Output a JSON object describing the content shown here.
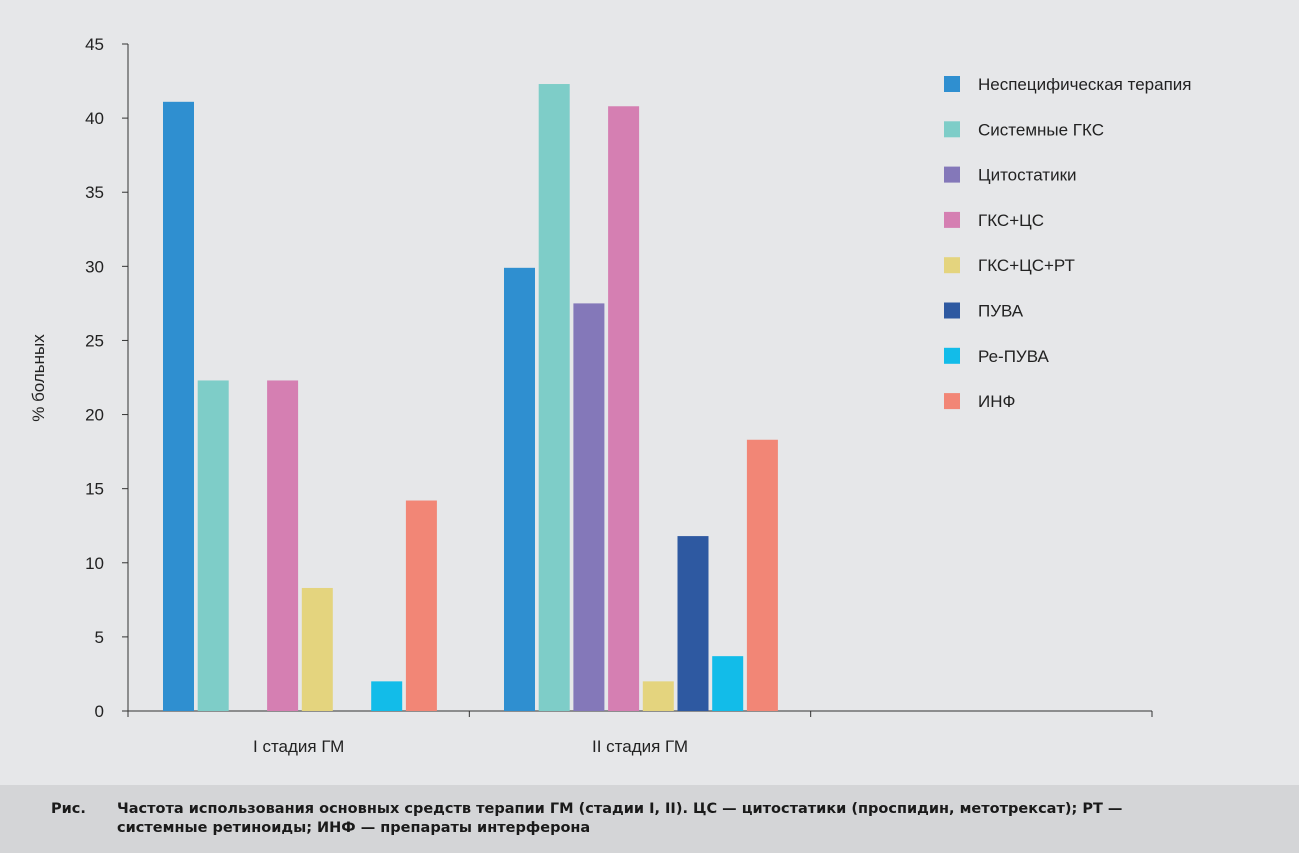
{
  "chart_data": {
    "type": "bar",
    "categories": [
      "I стадия ГМ",
      "II стадия ГМ",
      ""
    ],
    "ylabel": "% больных",
    "xlabel": "",
    "ylim": [
      0,
      45
    ],
    "yticks": [
      0,
      5,
      10,
      15,
      20,
      25,
      30,
      35,
      40,
      45
    ],
    "grid": false,
    "legend_position": "right",
    "series": [
      {
        "name": "Неспецифическая терапия",
        "color": "#2f8fd0",
        "values": [
          41.1,
          29.9,
          null
        ]
      },
      {
        "name": "Системные ГКС",
        "color": "#7ecdc8",
        "values": [
          22.3,
          42.3,
          null
        ]
      },
      {
        "name": "Цитостатики",
        "color": "#8478b9",
        "values": [
          0,
          27.5,
          null
        ]
      },
      {
        "name": "ГКС+ЦС",
        "color": "#d57fb2",
        "values": [
          22.3,
          40.8,
          null
        ]
      },
      {
        "name": "ГКС+ЦС+РТ",
        "color": "#e4d47e",
        "values": [
          8.3,
          2.0,
          null
        ]
      },
      {
        "name": "ПУВА",
        "color": "#2e59a1",
        "values": [
          0,
          11.8,
          null
        ]
      },
      {
        "name": "Ре-ПУВА",
        "color": "#12bce9",
        "values": [
          2.0,
          3.7,
          null
        ]
      },
      {
        "name": "ИНФ",
        "color": "#f28676",
        "values": [
          14.2,
          18.3,
          null
        ]
      }
    ]
  },
  "caption": {
    "prefix": "Рис.",
    "text": "Частота использования основных средств терапии ГМ (стадии I, II). ЦС — цитостатики (проспидин, метотрексат); РТ — системные ретиноиды; ИНФ — препараты интерферона"
  }
}
